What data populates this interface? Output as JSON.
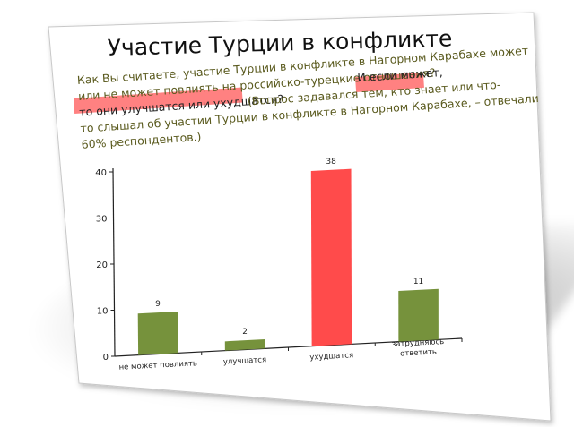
{
  "slide": {
    "title": "Участие Турции в конфликте",
    "question_line1": "Как Вы считаете, участие Турции в конфликте в Нагорном Карабахе может",
    "question_line2a": "или не может повлиять на российско-турецкие отношения?",
    "question_line2b": "И если может,",
    "question_line3a": "то они улучшатся или ухудшатся?",
    "question_line3b": "(Вопрос задавался тем, кто знает или что-",
    "question_line4": "то слышал об участии Турции в конфликте в Нагорном Карабахе, – отвечали",
    "question_line5": "60% респондентов.)"
  },
  "colors": {
    "green": "#76923c",
    "red": "#ff4b4b",
    "highlight": "#ff6b6b",
    "axis": "#222222"
  },
  "chart_data": {
    "type": "bar",
    "categories": [
      "не может повлиять",
      "улучшатся",
      "ухудшатся",
      "затрудняюсь ответить"
    ],
    "category_lines": [
      [
        "не может повлиять"
      ],
      [
        "улучшатся"
      ],
      [
        "ухудшатся"
      ],
      [
        "затрудняюсь",
        "ответить"
      ]
    ],
    "values": [
      9,
      2,
      38,
      11
    ],
    "value_labels": [
      "9",
      "2",
      "38",
      "11"
    ],
    "bar_colors": [
      "#76923c",
      "#76923c",
      "#ff4b4b",
      "#76923c"
    ],
    "yticks": [
      0,
      10,
      20,
      30,
      40
    ],
    "ylim": [
      0,
      40
    ],
    "grid": false
  }
}
